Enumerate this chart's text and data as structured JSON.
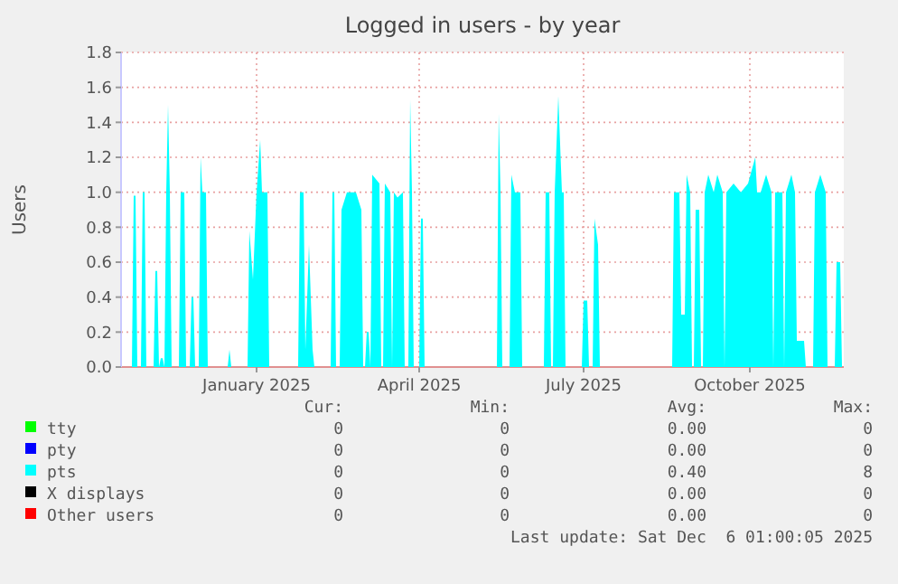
{
  "chart_data": {
    "type": "area",
    "title": "Logged in users - by year",
    "ylabel": "Users",
    "xlim": [
      "2024-10-18",
      "2025-11-22"
    ],
    "xticks": [
      {
        "value": "2025-01-01",
        "label": "January 2025"
      },
      {
        "value": "2025-04-01",
        "label": "April 2025"
      },
      {
        "value": "2025-07-01",
        "label": "July 2025"
      },
      {
        "value": "2025-10-01",
        "label": "October 2025"
      }
    ],
    "ylim": [
      0,
      1.8
    ],
    "yticks": [
      {
        "value": 0,
        "label": "0.0"
      },
      0.2,
      0.4,
      0.6,
      0.8,
      {
        "value": 1,
        "label": "1.0"
      },
      1.2,
      1.4,
      1.6,
      1.8
    ],
    "grid": true,
    "legend": "bottom",
    "series": [
      {
        "name": "tty",
        "color": "#00ff00"
      },
      {
        "name": "pty",
        "color": "#0000ff"
      },
      {
        "name": "pts",
        "color": "#00ffff",
        "x": [
          "2024-10-18",
          "2024-10-24",
          "2024-10-25",
          "2024-10-26",
          "2024-10-27",
          "2024-10-29",
          "2024-10-30",
          "2024-10-31",
          "2024-11-01",
          "2024-11-05",
          "2024-11-06",
          "2024-11-07",
          "2024-11-08",
          "2024-11-09",
          "2024-11-10",
          "2024-11-11",
          "2024-11-12",
          "2024-11-13",
          "2024-11-14",
          "2024-11-15",
          "2024-11-19",
          "2024-11-20",
          "2024-11-22",
          "2024-11-23",
          "2024-11-25",
          "2024-11-26",
          "2024-11-27",
          "2024-11-28",
          "2024-11-30",
          "2024-12-01",
          "2024-12-02",
          "2024-12-04",
          "2024-12-05",
          "2024-12-16",
          "2024-12-17",
          "2024-12-18",
          "2024-12-27",
          "2024-12-28",
          "2024-12-30",
          "2025-01-01",
          "2025-01-03",
          "2025-01-04",
          "2025-01-07",
          "2025-01-08",
          "2025-01-24",
          "2025-01-25",
          "2025-01-27",
          "2025-01-28",
          "2025-01-30",
          "2025-02-01",
          "2025-02-02",
          "2025-02-11",
          "2025-02-12",
          "2025-02-13",
          "2025-02-14",
          "2025-02-16",
          "2025-02-17",
          "2025-02-20",
          "2025-02-25",
          "2025-02-28",
          "2025-03-01",
          "2025-03-02",
          "2025-03-03",
          "2025-03-04",
          "2025-03-05",
          "2025-03-06",
          "2025-03-10",
          "2025-03-11",
          "2025-03-12",
          "2025-03-13",
          "2025-03-16",
          "2025-03-17",
          "2025-03-18",
          "2025-03-20",
          "2025-03-23",
          "2025-03-24",
          "2025-03-26",
          "2025-03-27",
          "2025-03-28",
          "2025-03-29",
          "2025-04-01",
          "2025-04-02",
          "2025-04-03",
          "2025-04-04",
          "2025-05-14",
          "2025-05-15",
          "2025-05-16",
          "2025-05-17",
          "2025-05-21",
          "2025-05-22",
          "2025-05-24",
          "2025-05-27",
          "2025-05-28",
          "2025-06-09",
          "2025-06-10",
          "2025-06-12",
          "2025-06-13",
          "2025-06-14",
          "2025-06-15",
          "2025-06-17",
          "2025-06-19",
          "2025-06-20",
          "2025-06-21",
          "2025-06-30",
          "2025-07-01",
          "2025-07-03",
          "2025-07-04",
          "2025-07-06",
          "2025-07-07",
          "2025-07-09",
          "2025-07-10",
          "2025-08-19",
          "2025-08-20",
          "2025-08-23",
          "2025-08-24",
          "2025-08-26",
          "2025-08-27",
          "2025-08-29",
          "2025-08-30",
          "2025-08-31",
          "2025-09-01",
          "2025-09-03",
          "2025-09-04",
          "2025-09-05",
          "2025-09-06",
          "2025-09-08",
          "2025-09-11",
          "2025-09-13",
          "2025-09-16",
          "2025-09-17",
          "2025-09-18",
          "2025-09-22",
          "2025-09-26",
          "2025-09-30",
          "2025-10-04",
          "2025-10-05",
          "2025-10-07",
          "2025-10-10",
          "2025-10-13",
          "2025-10-14",
          "2025-10-15",
          "2025-10-19",
          "2025-10-20",
          "2025-10-21",
          "2025-10-24",
          "2025-10-26",
          "2025-10-27",
          "2025-10-31",
          "2025-11-01",
          "2025-11-05",
          "2025-11-06",
          "2025-11-09",
          "2025-11-12",
          "2025-11-13",
          "2025-11-17",
          "2025-11-18",
          "2025-11-20",
          "2025-11-21",
          "2025-11-22"
        ],
        "values": [
          0,
          0,
          0.98,
          0.98,
          0,
          0,
          1.0,
          1.0,
          0,
          0,
          0.55,
          0.55,
          0,
          0.05,
          0.05,
          0,
          1.0,
          1.5,
          1.0,
          0,
          0,
          1.0,
          1.0,
          0,
          0,
          0.4,
          0.4,
          0,
          0,
          1.2,
          1.0,
          1.0,
          0,
          0,
          0.1,
          0,
          0,
          0.78,
          0.5,
          1.0,
          1.3,
          1.0,
          1.0,
          0,
          0,
          1.0,
          1.0,
          0.1,
          0.7,
          0.1,
          0,
          0,
          1.0,
          1.0,
          0,
          0,
          0.9,
          1.0,
          1.0,
          0.9,
          0,
          0,
          0.2,
          0.2,
          0,
          1.1,
          1.05,
          0,
          0,
          1.05,
          1.0,
          0,
          1.0,
          0.97,
          1.0,
          0,
          0,
          1.53,
          1.0,
          0,
          0,
          0.85,
          0.85,
          0,
          0,
          1.45,
          1.0,
          0,
          0,
          1.1,
          1.0,
          1.0,
          0,
          0,
          1.0,
          1.0,
          0,
          0,
          1.0,
          1.55,
          1.0,
          1.0,
          0,
          0,
          0.38,
          0.38,
          0,
          0,
          0.85,
          0.7,
          0,
          0,
          1.0,
          1.0,
          0.3,
          0.3,
          1.1,
          1.0,
          0,
          0,
          0.9,
          0.9,
          0,
          0,
          1.0,
          1.1,
          1.0,
          1.1,
          1.0,
          0,
          1.0,
          1.05,
          1.0,
          1.05,
          1.2,
          1.0,
          1.0,
          1.1,
          1.0,
          0,
          1.0,
          1.0,
          0,
          1.0,
          1.1,
          1.0,
          0.15,
          0.15,
          0,
          0,
          1.0,
          1.1,
          1.0,
          0,
          0,
          0.6,
          0.6,
          0,
          0
        ]
      },
      {
        "name": "X displays",
        "color": "#000000"
      },
      {
        "name": "Other users",
        "color": "#ff0000"
      }
    ],
    "annotations": [
      "Cur:",
      "Min:",
      "Avg:",
      "Max:",
      "0",
      "0",
      "0.00",
      "0",
      "0",
      "0",
      "0.00",
      "0",
      "0",
      "0",
      "0.40",
      "8",
      "0",
      "0",
      "0.00",
      "0",
      "0",
      "0",
      "0.00",
      "0",
      "Last update: Sat Dec  6 01:00:05 2025"
    ]
  }
}
